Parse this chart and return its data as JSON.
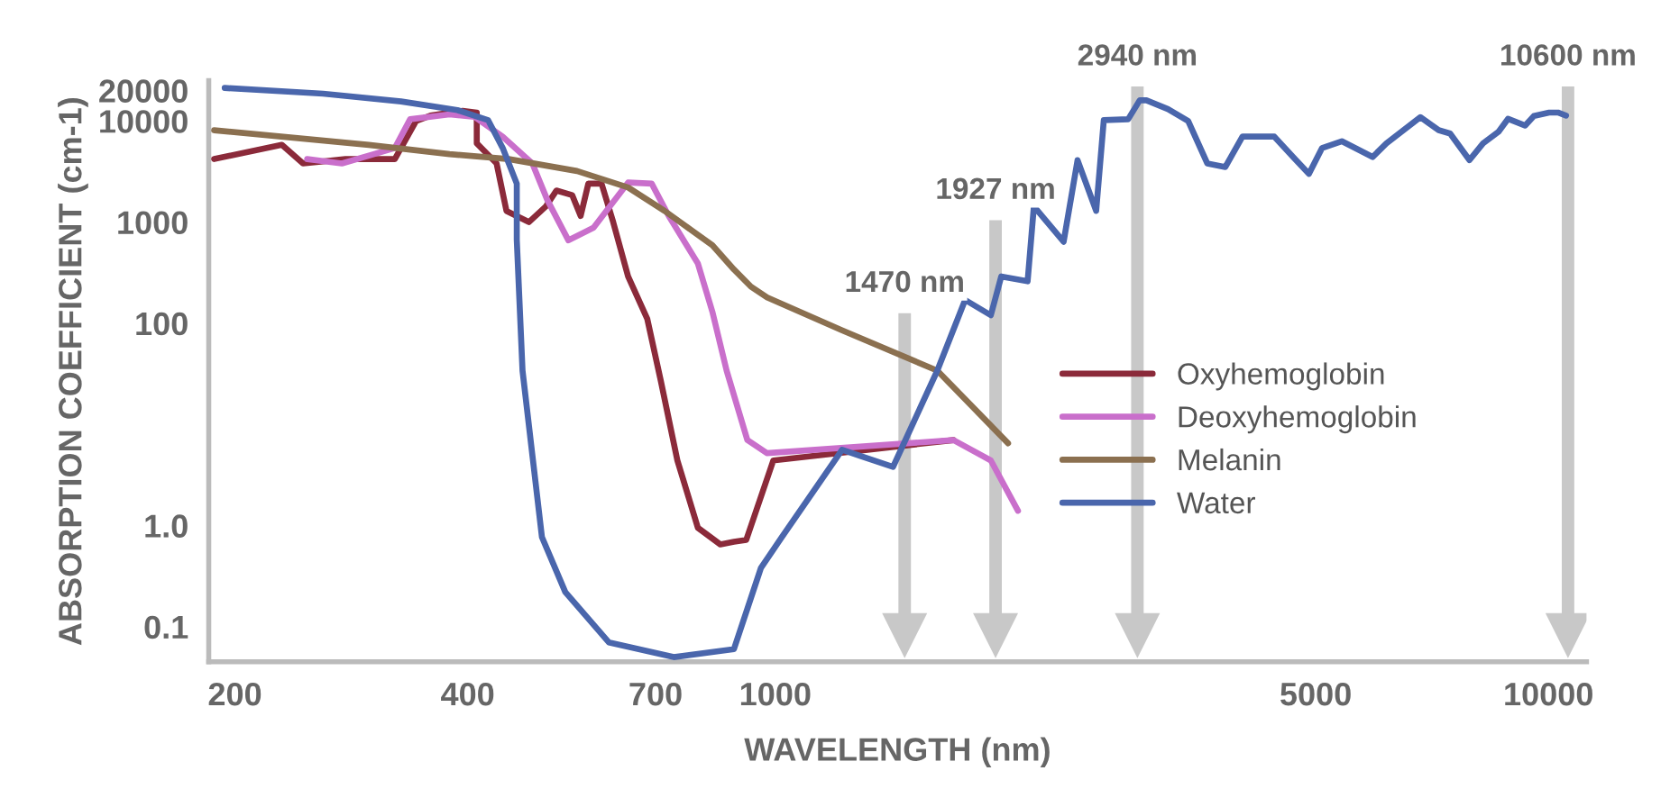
{
  "chart_data": {
    "type": "line",
    "xlabel": "WAVELENGTH (nm)",
    "ylabel": "ABSORPTION COEFFICIENT (cm-1)",
    "xlim": [
      185,
      11200
    ],
    "ylim": [
      0.045,
      25000
    ],
    "xticks": [
      200,
      400,
      700,
      1000,
      5000,
      10000
    ],
    "yticks": [
      0.1,
      {
        "value": 1,
        "label": "1.0"
      },
      100,
      1000,
      10000,
      20000
    ],
    "log": "xy",
    "grid": false,
    "legend": "center right",
    "line_style": "solid",
    "marker": "none",
    "series": [
      {
        "name": "Oxyhemoglobin",
        "color": "#8b2a3a",
        "x": [
          188,
          230,
          245,
          278,
          322,
          343,
          358,
          394,
          411,
          411,
          436,
          449,
          480,
          505,
          521,
          546,
          560,
          573,
          596,
          617,
          645,
          683,
          711,
          747,
          794,
          849,
          884,
          917,
          994,
          1700
        ],
        "values": [
          4200,
          5800,
          3800,
          4200,
          4200,
          10000,
          11300,
          12600,
          12100,
          6000,
          3800,
          1290,
          1000,
          1430,
          2050,
          1850,
          1150,
          2400,
          2400,
          1000,
          290,
          110,
          27,
          4.4,
          0.95,
          0.65,
          0.69,
          0.72,
          4.4,
          7.0
        ]
      },
      {
        "name": "Deoxyhemoglobin",
        "color": "#c96fcb",
        "x": [
          248,
          275,
          322,
          337,
          379,
          408,
          444,
          485,
          507,
          540,
          582,
          645,
          692,
          728,
          794,
          829,
          865,
          920,
          975,
          1700,
          1900,
          2060
        ],
        "values": [
          4200,
          3800,
          5400,
          10400,
          11600,
          11000,
          7000,
          3800,
          1660,
          660,
          880,
          2460,
          2400,
          1150,
          390,
          130,
          34,
          7.0,
          5.2,
          7.0,
          4.4,
          1.4
        ]
      },
      {
        "name": "Melanin",
        "color": "#8b7050",
        "x": [
          188,
          298,
          379,
          452,
          554,
          645,
          719,
          829,
          884,
          930,
          976,
          1220,
          1620,
          2000
        ],
        "values": [
          8100,
          5800,
          4700,
          4200,
          3200,
          2200,
          1290,
          590,
          340,
          230,
          180,
          85,
          34,
          6.5
        ]
      },
      {
        "name": "Water",
        "color": "#4a66ac",
        "x": [
          194,
          260,
          328,
          388,
          425,
          444,
          463,
          463,
          471,
          499,
          535,
          609,
          739,
          884,
          958,
          1020,
          1220,
          1420,
          1620,
          1760,
          1900,
          1960,
          2120,
          2160,
          2360,
          2460,
          2600,
          2660,
          2860,
          2960,
          3020,
          3220,
          3420,
          3620,
          3820,
          4020,
          4420,
          4700,
          4900,
          5096,
          5404,
          5923,
          6173,
          6827,
          7211,
          7461,
          7904,
          8231,
          8615,
          8865,
          9327,
          9577,
          10019,
          10288,
          10538
        ],
        "values": [
          21200,
          18600,
          15600,
          12800,
          10200,
          5400,
          2400,
          670,
          34,
          0.77,
          0.22,
          0.07,
          0.05,
          0.06,
          0.38,
          0.77,
          5.6,
          3.8,
          34,
          170,
          120,
          290,
          260,
          1430,
          640,
          4100,
          1290,
          10200,
          10400,
          16000,
          16000,
          13100,
          10000,
          3800,
          3500,
          7000,
          7000,
          4200,
          3000,
          5400,
          6300,
          4400,
          6000,
          10900,
          8100,
          7500,
          4100,
          6000,
          7800,
          10500,
          9000,
          11200,
          12100,
          12100,
          11300
        ]
      }
    ],
    "ref_lines": [
      {
        "axis": "x",
        "value": 1470,
        "label": "1470 nm",
        "color": "#c8c8c8"
      },
      {
        "axis": "x",
        "value": 1927,
        "label": "1927 nm",
        "color": "#c8c8c8"
      },
      {
        "axis": "x",
        "value": 2940,
        "label": "2940 nm",
        "color": "#c8c8c8"
      },
      {
        "axis": "x",
        "value": 10600,
        "label": "10600 nm",
        "color": "#c8c8c8"
      }
    ]
  }
}
